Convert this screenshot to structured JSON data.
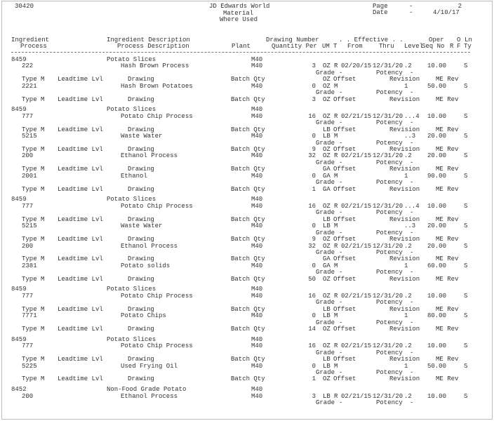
{
  "header": {
    "report_id": "30420",
    "company": "JD Edwards World",
    "title": "Material",
    "subtitle": "Where Used",
    "page_label": "Page",
    "page_dash": "-",
    "page_no": "2",
    "date_label": "Date",
    "date_dash": "-",
    "date": "4/10/17"
  },
  "columns": {
    "ingredient": "Ingredient",
    "process": "Process",
    "ingredient_desc": "Ingredient Description",
    "process_desc": "Process Description",
    "plant": "Plant",
    "drawing_number": "Drawing Number",
    "quantity_per": "Quantity Per",
    "effective": ". . Effective . .",
    "um": "UM",
    "t": "T",
    "from": "From",
    "thru": "Thru",
    "level": "Level",
    "oper": "Oper",
    "seq_no": "Seq No",
    "o": "O",
    "r": "R",
    "ln": "Ln",
    "f": "F",
    "ty": "Ty"
  },
  "labels": {
    "grade": "Grade",
    "potency": "Potency",
    "dash": "-",
    "type_m": "Type M",
    "leadtime": "Leadtime Lvl",
    "drawing": "Drawing",
    "batch_qty": "Batch Qty",
    "offset": "Offset",
    "revision": "Revision",
    "me_rev": "ME Rev"
  },
  "groups": [
    {
      "item": "8459",
      "item_desc": "Potato Slices",
      "plant": "M40",
      "rows": [
        {
          "proc": "222",
          "desc": "Hash Brown Process",
          "plant": "M40",
          "qty": "3",
          "um": "OZ",
          "t": "R",
          "from": "02/20/15",
          "thru": "12/31/20",
          "level": ".2",
          "seq": "10.00",
          "ty": "S",
          "bq": "",
          "bq_um": "OZ"
        },
        {
          "proc": "2221",
          "desc": "Hash Brown Potatoes",
          "plant": "M40",
          "qty": "0",
          "um": "OZ",
          "t": "M",
          "from": "",
          "thru": "",
          "level": "1",
          "seq": "50.00",
          "ty": "S",
          "bq": "3",
          "bq_um": "OZ"
        }
      ]
    },
    {
      "item": "8459",
      "item_desc": "Potato Slices",
      "plant": "M40",
      "rows": [
        {
          "proc": "777",
          "desc": "Potato Chip Process",
          "plant": "M40",
          "qty": "16",
          "um": "OZ",
          "t": "R",
          "from": "02/21/15",
          "thru": "12/31/20",
          "level": "...4",
          "seq": "10.00",
          "ty": "S",
          "bq": "",
          "bq_um": "LB"
        },
        {
          "proc": "5215",
          "desc": "Waste Water",
          "plant": "M40",
          "qty": "0",
          "um": "LB",
          "t": "M",
          "from": "",
          "thru": "",
          "level": "..3",
          "seq": "20.00",
          "ty": "S",
          "bq": "9",
          "bq_um": "OZ"
        },
        {
          "proc": "200",
          "desc": "Ethanol Process",
          "plant": "M40",
          "qty": "32",
          "um": "OZ",
          "t": "R",
          "from": "02/21/15",
          "thru": "12/31/20",
          "level": ".2",
          "seq": "20.00",
          "ty": "S",
          "bq": "",
          "bq_um": "GA"
        },
        {
          "proc": "2001",
          "desc": "Ethanol",
          "plant": "M40",
          "qty": "0",
          "um": "GA",
          "t": "M",
          "from": "",
          "thru": "",
          "level": "1",
          "seq": "90.00",
          "ty": "S",
          "bq": "1",
          "bq_um": "GA"
        }
      ]
    },
    {
      "item": "8459",
      "item_desc": "Potato Slices",
      "plant": "M40",
      "rows": [
        {
          "proc": "777",
          "desc": "Potato Chip Process",
          "plant": "M40",
          "qty": "16",
          "um": "OZ",
          "t": "R",
          "from": "02/21/15",
          "thru": "12/31/20",
          "level": "...4",
          "seq": "10.00",
          "ty": "S",
          "bq": "",
          "bq_um": "LB"
        },
        {
          "proc": "5215",
          "desc": "Waste Water",
          "plant": "M40",
          "qty": "0",
          "um": "LB",
          "t": "M",
          "from": "",
          "thru": "",
          "level": "..3",
          "seq": "20.00",
          "ty": "S",
          "bq": "9",
          "bq_um": "OZ"
        },
        {
          "proc": "200",
          "desc": "Ethanol Process",
          "plant": "M40",
          "qty": "32",
          "um": "OZ",
          "t": "R",
          "from": "02/21/15",
          "thru": "12/31/20",
          "level": ".2",
          "seq": "20.00",
          "ty": "S",
          "bq": "",
          "bq_um": "GA"
        },
        {
          "proc": "2381",
          "desc": "Potato solids",
          "plant": "M40",
          "qty": "0",
          "um": "GA",
          "t": "M",
          "from": "",
          "thru": "",
          "level": "1",
          "seq": "60.00",
          "ty": "S",
          "bq": "50",
          "bq_um": "OZ"
        }
      ]
    },
    {
      "item": "8459",
      "item_desc": "Potato Slices",
      "plant": "M40",
      "rows": [
        {
          "proc": "777",
          "desc": "Potato Chip Process",
          "plant": "M40",
          "qty": "16",
          "um": "OZ",
          "t": "R",
          "from": "02/21/15",
          "thru": "12/31/20",
          "level": ".2",
          "seq": "10.00",
          "ty": "S",
          "bq": "",
          "bq_um": "LB"
        },
        {
          "proc": "7771",
          "desc": "Potato Chips",
          "plant": "M40",
          "qty": "0",
          "um": "LB",
          "t": "M",
          "from": "",
          "thru": "",
          "level": "1",
          "seq": "80.00",
          "ty": "S",
          "bq": "14",
          "bq_um": "OZ"
        }
      ]
    },
    {
      "item": "8459",
      "item_desc": "Potato Slices",
      "plant": "M40",
      "rows": [
        {
          "proc": "777",
          "desc": "Potato Chip Process",
          "plant": "M40",
          "qty": "16",
          "um": "OZ",
          "t": "R",
          "from": "02/21/15",
          "thru": "12/31/20",
          "level": ".2",
          "seq": "10.00",
          "ty": "S",
          "bq": "",
          "bq_um": "LB"
        },
        {
          "proc": "5225",
          "desc": "Used Frying Oil",
          "plant": "M40",
          "qty": "0",
          "um": "LB",
          "t": "M",
          "from": "",
          "thru": "",
          "level": "1",
          "seq": "50.00",
          "ty": "S",
          "bq": "1",
          "bq_um": "OZ"
        }
      ]
    },
    {
      "item": "8452",
      "item_desc": "Non-Food Grade Potato",
      "plant": "M40",
      "rows": [
        {
          "proc": "200",
          "desc": "Ethanol Process",
          "plant": "M40",
          "qty": "3",
          "um": "LB",
          "t": "R",
          "from": "02/21/15",
          "thru": "12/31/20",
          "level": ".2",
          "seq": "10.00",
          "ty": "S",
          "bq": null,
          "bq_um": null
        }
      ]
    }
  ]
}
